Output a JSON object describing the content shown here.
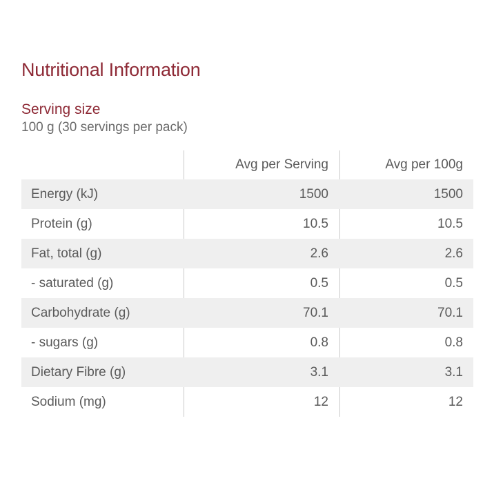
{
  "title": "Nutritional Information",
  "serving": {
    "label": "Serving size",
    "value": "100 g (30 servings per pack)"
  },
  "table": {
    "headers": [
      "",
      "Avg per Serving",
      "Avg per 100g"
    ],
    "rows": [
      {
        "label": "Energy (kJ)",
        "per_serving": "1500",
        "per_100g": "1500"
      },
      {
        "label": "Protein (g)",
        "per_serving": "10.5",
        "per_100g": "10.5"
      },
      {
        "label": "Fat, total (g)",
        "per_serving": "2.6",
        "per_100g": "2.6"
      },
      {
        "label": "- saturated (g)",
        "per_serving": "0.5",
        "per_100g": "0.5"
      },
      {
        "label": "Carbohydrate (g)",
        "per_serving": "70.1",
        "per_100g": "70.1"
      },
      {
        "label": "- sugars (g)",
        "per_serving": "0.8",
        "per_100g": "0.8"
      },
      {
        "label": "Dietary Fibre (g)",
        "per_serving": "3.1",
        "per_100g": "3.1"
      },
      {
        "label": "Sodium (mg)",
        "per_serving": "12",
        "per_100g": "12"
      }
    ]
  },
  "colors": {
    "accent": "#8e2a36",
    "text": "#5a5a5a",
    "row_shade": "#efefef",
    "divider": "#c9c9c9"
  }
}
